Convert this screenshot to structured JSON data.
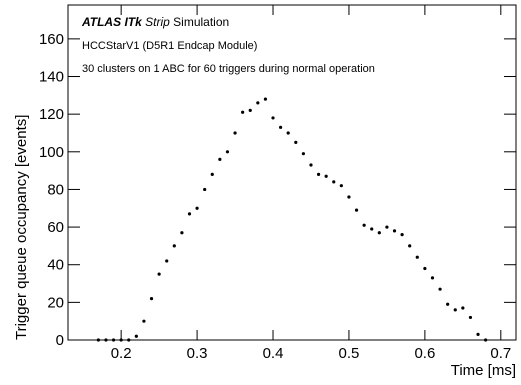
{
  "chart_data": {
    "type": "scatter",
    "annotations": {
      "experiment": "ATLAS",
      "detector": "ITk",
      "subsystem": "Strip",
      "status": "Simulation",
      "line2": "HCCStarV1 (D5R1 Endcap Module)",
      "line3": "30 clusters on 1 ABC for 60 triggers during normal operation"
    },
    "x_label": "Time [ms]",
    "y_label": "Trigger queue occupancy [events]",
    "color": "#000000",
    "x": [
      0.17,
      0.18,
      0.19,
      0.2,
      0.21,
      0.22,
      0.23,
      0.24,
      0.25,
      0.26,
      0.27,
      0.28,
      0.29,
      0.3,
      0.31,
      0.32,
      0.33,
      0.34,
      0.35,
      0.36,
      0.37,
      0.38,
      0.39,
      0.4,
      0.41,
      0.42,
      0.43,
      0.44,
      0.45,
      0.46,
      0.47,
      0.48,
      0.49,
      0.5,
      0.51,
      0.52,
      0.53,
      0.54,
      0.55,
      0.56,
      0.57,
      0.58,
      0.59,
      0.6,
      0.61,
      0.62,
      0.63,
      0.64,
      0.65,
      0.66,
      0.67,
      0.68
    ],
    "y": [
      0,
      0,
      0,
      0,
      0,
      2,
      10,
      22,
      35,
      42,
      50,
      57,
      67,
      70,
      80,
      88,
      96,
      100,
      110,
      121,
      122,
      126,
      128,
      118,
      113,
      110,
      105,
      99,
      93,
      88,
      87,
      84,
      82,
      76,
      69,
      61,
      59,
      57,
      60,
      58,
      56,
      50,
      44,
      38,
      33,
      27,
      19,
      16,
      17,
      12,
      3,
      0
    ],
    "xlim": [
      0.13,
      0.72
    ],
    "ylim": [
      0,
      178
    ],
    "xticks": [
      0.2,
      0.3,
      0.4,
      0.5,
      0.6,
      0.7
    ],
    "yticks": [
      0,
      20,
      40,
      60,
      80,
      100,
      120,
      140,
      160
    ]
  }
}
